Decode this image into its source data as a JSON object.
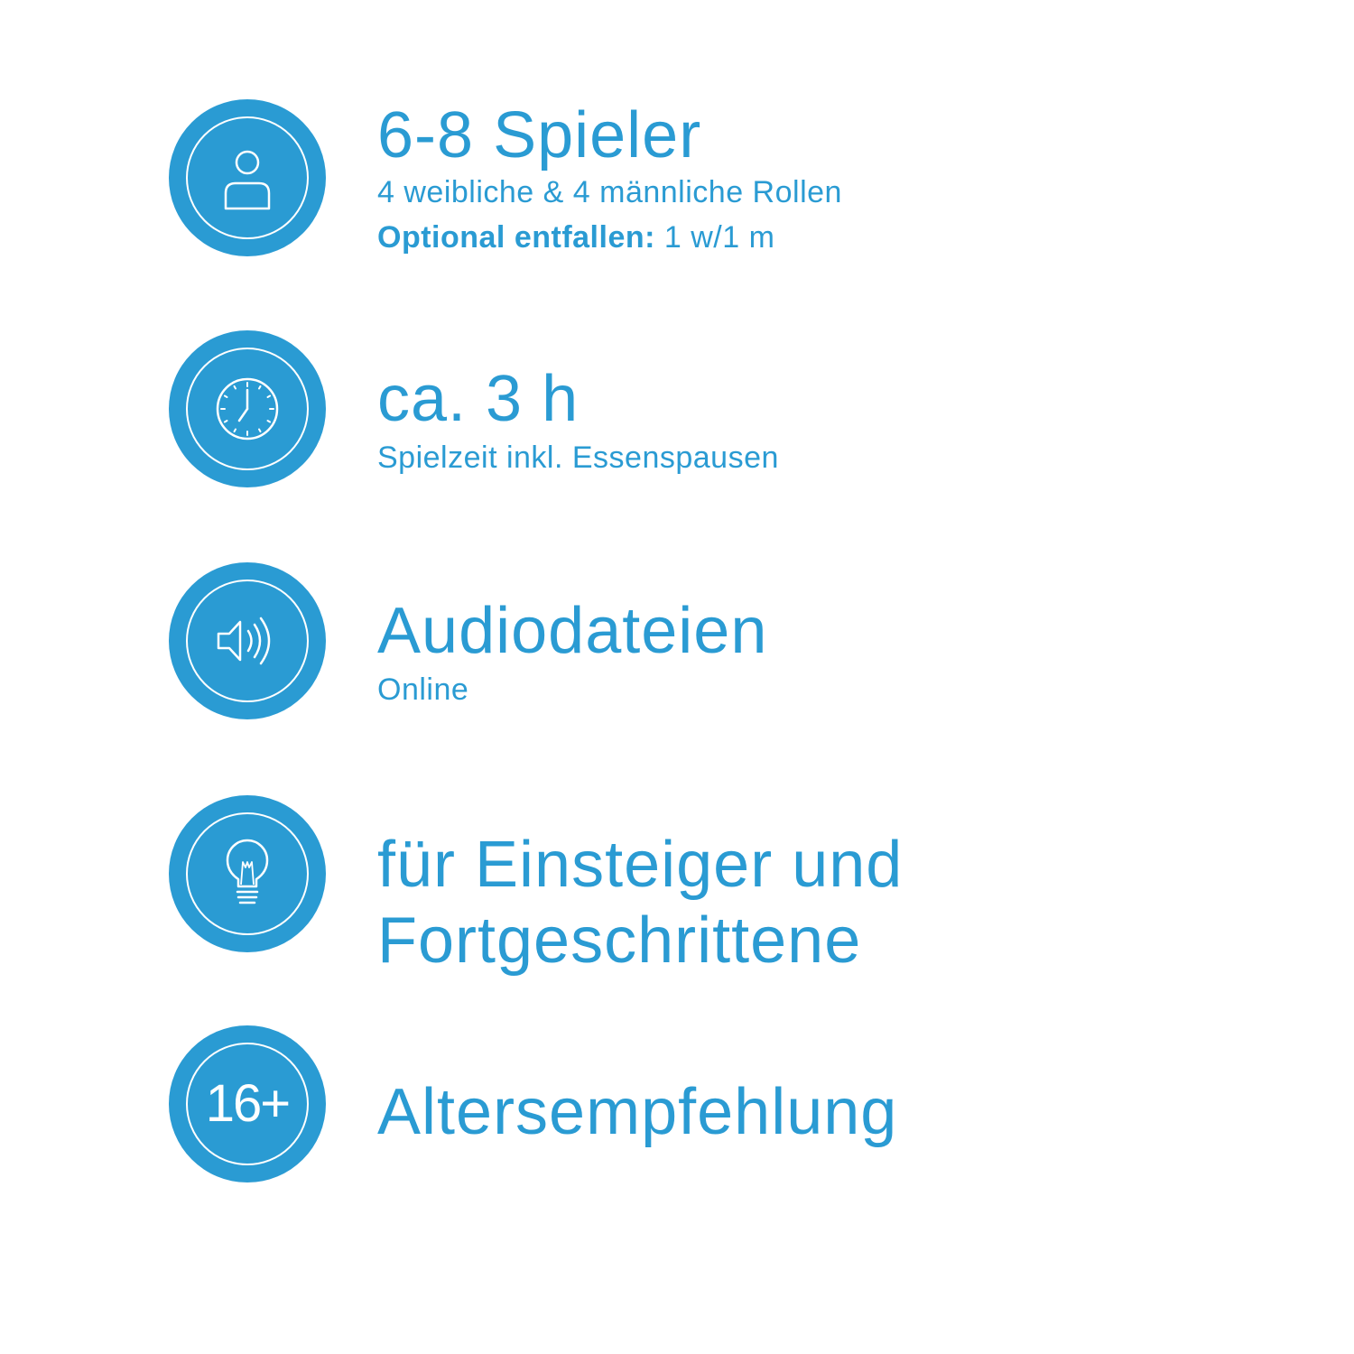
{
  "colors": {
    "accent": "#2a9bd3",
    "background": "#ffffff"
  },
  "items": [
    {
      "icon": "person-icon",
      "title": "6-8 Spieler",
      "subtitle": "4 weibliche & 4 männliche Rollen",
      "note_label": "Optional entfallen:",
      "note_value": " 1 w/1 m"
    },
    {
      "icon": "clock-icon",
      "title": "ca. 3 h",
      "subtitle": "Spielzeit inkl. Essenspausen"
    },
    {
      "icon": "speaker-icon",
      "title": "Audiodateien",
      "subtitle": "Online"
    },
    {
      "icon": "lightbulb-icon",
      "title_line1": "für Einsteiger und",
      "title_line2": "Fortgeschrittene"
    },
    {
      "icon": "age-badge",
      "badge_text": "16+",
      "title": "Altersempfehlung"
    }
  ]
}
